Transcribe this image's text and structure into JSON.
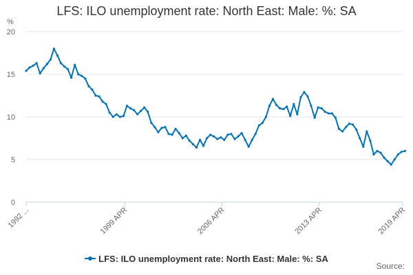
{
  "colors": {
    "series": "#0072b9",
    "grid": "#e6e6e6",
    "axis": "#c0d0e0",
    "text": "#666666"
  },
  "legend": {
    "label": "LFS: ILO unemployment rate: North East: Male: %: SA"
  },
  "source_label": "Source:",
  "chart_data": {
    "type": "line",
    "title": "LFS: ILO unemployment rate: North East: Male: %: SA",
    "unit_label": "%",
    "ylim": [
      0,
      20
    ],
    "yticks": [
      "0",
      "5",
      "10",
      "15",
      "20"
    ],
    "x_tick_labels": [
      "1992 ...",
      "1999 APR",
      "2006 APR",
      "2013 APR",
      "2019 APR"
    ],
    "x_tick_dates": [
      "1992-03",
      "1999-04",
      "2006-04",
      "2013-04",
      "2019-04"
    ],
    "grid": true,
    "legend_position": "bottom",
    "series": [
      {
        "name": "LFS: ILO unemployment rate: North East: Male: %: SA",
        "x": [
          "1992-03",
          "1992-06",
          "1992-09",
          "1992-12",
          "1993-03",
          "1993-06",
          "1993-09",
          "1993-12",
          "1994-03",
          "1994-06",
          "1994-09",
          "1994-12",
          "1995-03",
          "1995-06",
          "1995-09",
          "1995-12",
          "1996-03",
          "1996-06",
          "1996-09",
          "1996-12",
          "1997-03",
          "1997-06",
          "1997-09",
          "1997-12",
          "1998-03",
          "1998-06",
          "1998-09",
          "1998-12",
          "1999-03",
          "1999-06",
          "1999-09",
          "1999-12",
          "2000-03",
          "2000-06",
          "2000-09",
          "2000-12",
          "2001-03",
          "2001-06",
          "2001-09",
          "2001-12",
          "2002-03",
          "2002-06",
          "2002-09",
          "2002-12",
          "2003-03",
          "2003-06",
          "2003-09",
          "2003-12",
          "2004-03",
          "2004-06",
          "2004-09",
          "2004-12",
          "2005-03",
          "2005-06",
          "2005-09",
          "2005-12",
          "2006-03",
          "2006-06",
          "2006-09",
          "2006-12",
          "2007-03",
          "2007-06",
          "2007-09",
          "2007-12",
          "2008-03",
          "2008-06",
          "2008-09",
          "2008-12",
          "2009-03",
          "2009-06",
          "2009-09",
          "2009-12",
          "2010-03",
          "2010-06",
          "2010-09",
          "2010-12",
          "2011-03",
          "2011-06",
          "2011-09",
          "2011-12",
          "2012-03",
          "2012-06",
          "2012-09",
          "2012-12",
          "2013-03",
          "2013-06",
          "2013-09",
          "2013-12",
          "2014-03",
          "2014-06",
          "2014-09",
          "2014-12",
          "2015-03",
          "2015-06",
          "2015-09",
          "2015-12",
          "2016-03",
          "2016-06",
          "2016-09",
          "2016-12",
          "2017-03",
          "2017-06",
          "2017-09",
          "2017-12",
          "2018-03",
          "2018-06",
          "2018-09",
          "2018-12",
          "2019-03",
          "2019-06"
        ],
        "values": [
          15.4,
          15.8,
          16.0,
          16.3,
          15.1,
          15.7,
          16.2,
          16.7,
          18.0,
          17.2,
          16.3,
          15.9,
          15.6,
          14.6,
          16.1,
          15.0,
          14.8,
          14.5,
          13.6,
          13.2,
          12.5,
          12.4,
          11.8,
          11.5,
          10.5,
          10.0,
          10.3,
          10.0,
          10.1,
          11.3,
          11.0,
          10.8,
          10.3,
          10.7,
          11.1,
          10.6,
          9.3,
          8.8,
          8.2,
          8.7,
          8.8,
          8.0,
          7.9,
          8.6,
          8.1,
          7.5,
          7.8,
          7.2,
          6.8,
          6.4,
          7.3,
          6.6,
          7.5,
          7.9,
          7.7,
          7.4,
          7.6,
          7.3,
          7.9,
          8.0,
          7.4,
          7.7,
          8.1,
          7.3,
          6.5,
          7.3,
          8.0,
          9.0,
          9.3,
          10.0,
          11.3,
          12.1,
          11.4,
          11.0,
          10.9,
          11.2,
          10.1,
          11.5,
          10.3,
          12.3,
          12.9,
          12.4,
          11.3,
          9.9,
          11.1,
          11.0,
          10.6,
          10.4,
          10.4,
          9.9,
          8.6,
          8.3,
          8.8,
          9.2,
          9.1,
          8.5,
          7.5,
          6.5,
          8.3,
          7.2,
          5.6,
          6.0,
          5.8,
          5.2,
          4.8,
          4.4,
          5.0,
          5.6,
          5.9,
          6.0
        ]
      }
    ]
  }
}
